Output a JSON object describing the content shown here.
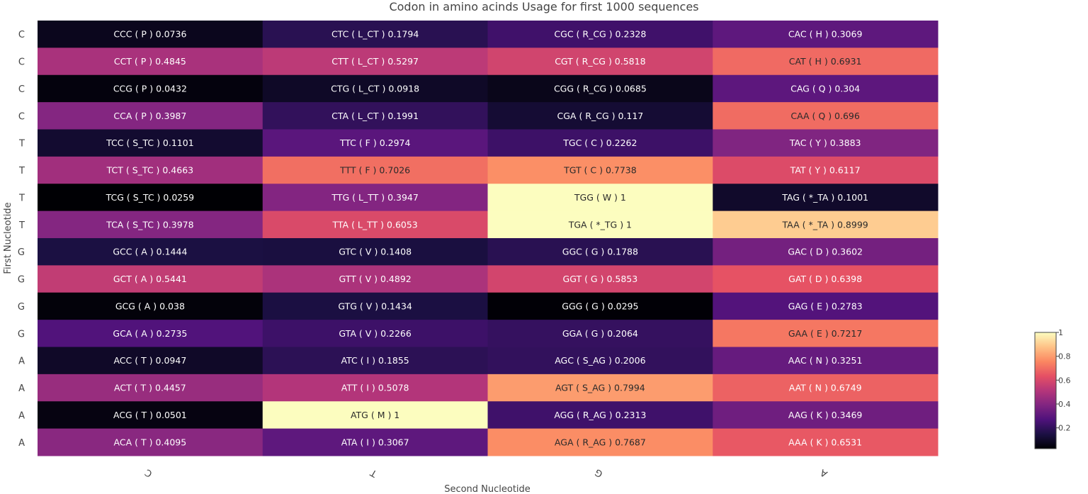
{
  "chart_data": {
    "type": "heatmap",
    "title": "Codon in amino acinds Usage for first 1000 sequences",
    "xlabel": "Second Nucleotide",
    "ylabel": "First Nucleotide",
    "x_categories": [
      "C",
      "T",
      "G",
      "A"
    ],
    "y_categories": [
      "C",
      "C",
      "C",
      "C",
      "T",
      "T",
      "T",
      "T",
      "G",
      "G",
      "G",
      "G",
      "A",
      "A",
      "A",
      "A"
    ],
    "colorscale": "magma",
    "zlim": [
      0.0259,
      1
    ],
    "colorbar_ticks": [
      "0.2",
      "0.4",
      "0.6",
      "0.8",
      "1"
    ],
    "colorbar_tick_values": [
      0.2,
      0.4,
      0.6,
      0.8,
      1
    ],
    "rows": [
      [
        {
          "label": "CCC ( P ) 0.0736",
          "value": 0.0736
        },
        {
          "label": "CTC ( L_CT ) 0.1794",
          "value": 0.1794
        },
        {
          "label": "CGC ( R_CG ) 0.2328",
          "value": 0.2328
        },
        {
          "label": "CAC ( H ) 0.3069",
          "value": 0.3069
        }
      ],
      [
        {
          "label": "CCT ( P ) 0.4845",
          "value": 0.4845
        },
        {
          "label": "CTT ( L_CT ) 0.5297",
          "value": 0.5297
        },
        {
          "label": "CGT ( R_CG ) 0.5818",
          "value": 0.5818
        },
        {
          "label": "CAT ( H ) 0.6931",
          "value": 0.6931
        }
      ],
      [
        {
          "label": "CCG ( P ) 0.0432",
          "value": 0.0432
        },
        {
          "label": "CTG ( L_CT ) 0.0918",
          "value": 0.0918
        },
        {
          "label": "CGG ( R_CG ) 0.0685",
          "value": 0.0685
        },
        {
          "label": "CAG ( Q ) 0.304",
          "value": 0.304
        }
      ],
      [
        {
          "label": "CCA ( P ) 0.3987",
          "value": 0.3987
        },
        {
          "label": "CTA ( L_CT ) 0.1991",
          "value": 0.1991
        },
        {
          "label": "CGA ( R_CG ) 0.117",
          "value": 0.117
        },
        {
          "label": "CAA ( Q ) 0.696",
          "value": 0.696
        }
      ],
      [
        {
          "label": "TCC ( S_TC ) 0.1101",
          "value": 0.1101
        },
        {
          "label": "TTC ( F ) 0.2974",
          "value": 0.2974
        },
        {
          "label": "TGC ( C ) 0.2262",
          "value": 0.2262
        },
        {
          "label": "TAC ( Y ) 0.3883",
          "value": 0.3883
        }
      ],
      [
        {
          "label": "TCT ( S_TC ) 0.4663",
          "value": 0.4663
        },
        {
          "label": "TTT ( F ) 0.7026",
          "value": 0.7026
        },
        {
          "label": "TGT ( C ) 0.7738",
          "value": 0.7738
        },
        {
          "label": "TAT ( Y ) 0.6117",
          "value": 0.6117
        }
      ],
      [
        {
          "label": "TCG ( S_TC ) 0.0259",
          "value": 0.0259
        },
        {
          "label": "TTG ( L_TT ) 0.3947",
          "value": 0.3947
        },
        {
          "label": "TGG ( W ) 1",
          "value": 1
        },
        {
          "label": "TAG ( *_TA ) 0.1001",
          "value": 0.1001
        }
      ],
      [
        {
          "label": "TCA ( S_TC ) 0.3978",
          "value": 0.3978
        },
        {
          "label": "TTA ( L_TT ) 0.6053",
          "value": 0.6053
        },
        {
          "label": "TGA ( *_TG ) 1",
          "value": 1
        },
        {
          "label": "TAA ( *_TA ) 0.8999",
          "value": 0.8999
        }
      ],
      [
        {
          "label": "GCC ( A ) 0.1444",
          "value": 0.1444
        },
        {
          "label": "GTC ( V ) 0.1408",
          "value": 0.1408
        },
        {
          "label": "GGC ( G ) 0.1788",
          "value": 0.1788
        },
        {
          "label": "GAC ( D ) 0.3602",
          "value": 0.3602
        }
      ],
      [
        {
          "label": "GCT ( A ) 0.5441",
          "value": 0.5441
        },
        {
          "label": "GTT ( V ) 0.4892",
          "value": 0.4892
        },
        {
          "label": "GGT ( G ) 0.5853",
          "value": 0.5853
        },
        {
          "label": "GAT ( D ) 0.6398",
          "value": 0.6398
        }
      ],
      [
        {
          "label": "GCG ( A ) 0.038",
          "value": 0.038
        },
        {
          "label": "GTG ( V ) 0.1434",
          "value": 0.1434
        },
        {
          "label": "GGG ( G ) 0.0295",
          "value": 0.0295
        },
        {
          "label": "GAG ( E ) 0.2783",
          "value": 0.2783
        }
      ],
      [
        {
          "label": "GCA ( A ) 0.2735",
          "value": 0.2735
        },
        {
          "label": "GTA ( V ) 0.2266",
          "value": 0.2266
        },
        {
          "label": "GGA ( G ) 0.2064",
          "value": 0.2064
        },
        {
          "label": "GAA ( E ) 0.7217",
          "value": 0.7217
        }
      ],
      [
        {
          "label": "ACC ( T ) 0.0947",
          "value": 0.0947
        },
        {
          "label": "ATC ( I ) 0.1855",
          "value": 0.1855
        },
        {
          "label": "AGC ( S_AG ) 0.2006",
          "value": 0.2006
        },
        {
          "label": "AAC ( N ) 0.3251",
          "value": 0.3251
        }
      ],
      [
        {
          "label": "ACT ( T ) 0.4457",
          "value": 0.4457
        },
        {
          "label": "ATT ( I ) 0.5078",
          "value": 0.5078
        },
        {
          "label": "AGT ( S_AG ) 0.7994",
          "value": 0.7994
        },
        {
          "label": "AAT ( N ) 0.6749",
          "value": 0.6749
        }
      ],
      [
        {
          "label": "ACG ( T ) 0.0501",
          "value": 0.0501
        },
        {
          "label": "ATG ( M ) 1",
          "value": 1
        },
        {
          "label": "AGG ( R_AG ) 0.2313",
          "value": 0.2313
        },
        {
          "label": "AAG ( K ) 0.3469",
          "value": 0.3469
        }
      ],
      [
        {
          "label": "ACA ( T ) 0.4095",
          "value": 0.4095
        },
        {
          "label": "ATA ( I ) 0.3067",
          "value": 0.3067
        },
        {
          "label": "AGA ( R_AG ) 0.7687",
          "value": 0.7687
        },
        {
          "label": "AAA ( K ) 0.6531",
          "value": 0.6531
        }
      ]
    ]
  }
}
